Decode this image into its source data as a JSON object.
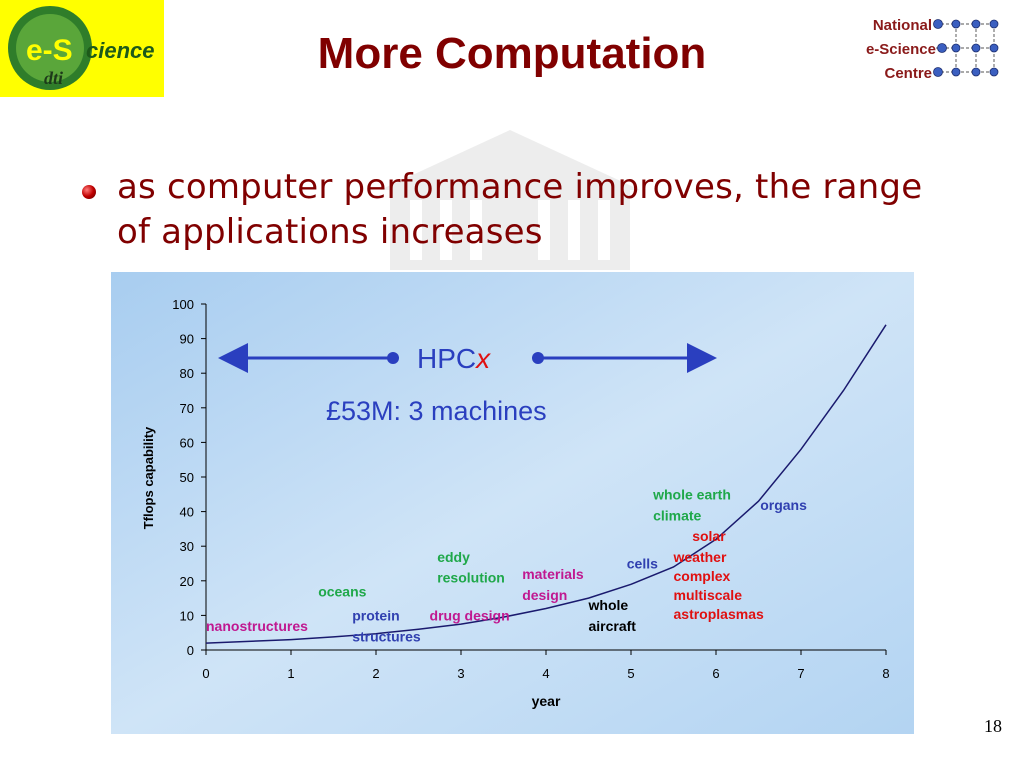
{
  "logos": {
    "left": {
      "main_text": "e-S",
      "sub_text": "cience",
      "dti_text": "dti",
      "icon": "e-science-dti-logo"
    },
    "right": {
      "lines": [
        "National",
        "e-Science",
        "Centre"
      ],
      "icon": "network-grid-icon"
    }
  },
  "slide": {
    "title": "More Computation",
    "bullet": "as computer performance improves, the range of applications increases",
    "number": "18"
  },
  "colors": {
    "title": "#800000",
    "arrow": "#2a3fbf",
    "curve": "#1a1a6e",
    "green": "#1fa84a",
    "magenta": "#c01890",
    "blue": "#3040b0",
    "red": "#e01010"
  },
  "chart_data": {
    "type": "line",
    "xlabel": "year",
    "ylabel": "Tflops capability",
    "xlim": [
      0,
      8
    ],
    "ylim": [
      0,
      100
    ],
    "xticks": [
      "0",
      "1",
      "2",
      "3",
      "4",
      "5",
      "6",
      "7",
      "8"
    ],
    "yticks": [
      "0",
      "10",
      "20",
      "30",
      "40",
      "50",
      "60",
      "70",
      "80",
      "90",
      "100"
    ],
    "series": [
      {
        "x": [
          0,
          0.5,
          1,
          1.5,
          2,
          2.5,
          3,
          3.5,
          4,
          4.5,
          5,
          5.5,
          6,
          6.5,
          7,
          7.5,
          8
        ],
        "y": [
          2,
          2.5,
          3,
          3.8,
          4.7,
          6,
          7.5,
          9.5,
          12,
          15,
          19,
          24,
          32,
          43,
          58,
          75,
          94
        ]
      }
    ],
    "annotations": {
      "hpc_prefix": "HPC",
      "hpc_suffix": "x",
      "cost": "£53M: 3 machines",
      "applications": [
        {
          "text": "nanostructures",
          "x": 0.0,
          "y": 5.5,
          "color": "magenta"
        },
        {
          "text": "oceans",
          "x": 1.32,
          "y": 15.5,
          "color": "green"
        },
        {
          "text": "protein",
          "x": 1.72,
          "y": 8.5,
          "color": "blue"
        },
        {
          "text": "structures",
          "x": 1.72,
          "y": 2.5,
          "color": "blue"
        },
        {
          "text": "drug design",
          "x": 2.63,
          "y": 8.5,
          "color": "magenta"
        },
        {
          "text": "eddy",
          "x": 2.72,
          "y": 25.5,
          "color": "green"
        },
        {
          "text": "resolution",
          "x": 2.72,
          "y": 19.5,
          "color": "green"
        },
        {
          "text": "materials",
          "x": 3.72,
          "y": 20.5,
          "color": "magenta"
        },
        {
          "text": "design",
          "x": 3.72,
          "y": 14.5,
          "color": "magenta"
        },
        {
          "text": "whole",
          "x": 4.5,
          "y": 11.5,
          "color": "black"
        },
        {
          "text": "aircraft",
          "x": 4.5,
          "y": 5.5,
          "color": "black"
        },
        {
          "text": "cells",
          "x": 4.95,
          "y": 23.5,
          "color": "blue"
        },
        {
          "text": "whole earth",
          "x": 5.26,
          "y": 43.5,
          "color": "green"
        },
        {
          "text": "climate",
          "x": 5.26,
          "y": 37.5,
          "color": "green"
        },
        {
          "text": "organs",
          "x": 6.52,
          "y": 40.5,
          "color": "blue"
        },
        {
          "text": "solar",
          "x": 5.72,
          "y": 31.5,
          "color": "red"
        },
        {
          "text": "weather",
          "x": 5.5,
          "y": 25.5,
          "color": "red"
        },
        {
          "text": "complex",
          "x": 5.5,
          "y": 20,
          "color": "red"
        },
        {
          "text": "multiscale",
          "x": 5.5,
          "y": 14.5,
          "color": "red"
        },
        {
          "text": "astroplasmas",
          "x": 5.5,
          "y": 9,
          "color": "red"
        }
      ]
    }
  }
}
